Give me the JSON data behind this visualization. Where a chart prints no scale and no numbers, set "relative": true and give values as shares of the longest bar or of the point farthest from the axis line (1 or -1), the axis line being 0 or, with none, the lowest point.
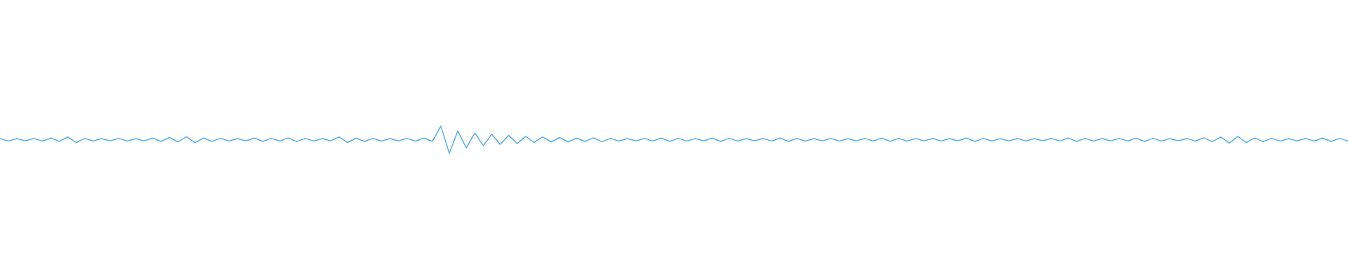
{
  "chart_data": {
    "type": "line",
    "relative": true,
    "marker": "none",
    "line_style": "solid",
    "grid": false,
    "legend": false,
    "categories": [
      null,
      null,
      null,
      null,
      null,
      null,
      null,
      null,
      null,
      null,
      null,
      null,
      null,
      null,
      null,
      null,
      null,
      null,
      null,
      null,
      null,
      null,
      null,
      null,
      null,
      null,
      null,
      null,
      null,
      null,
      null,
      null,
      null,
      null,
      null,
      null,
      null,
      null,
      null,
      null,
      null,
      null,
      null,
      null,
      null,
      null,
      null,
      null,
      null,
      null,
      null,
      null,
      null,
      null,
      null,
      null,
      null,
      null,
      null,
      null,
      null,
      null,
      null,
      null,
      null,
      null,
      null,
      null,
      null,
      null,
      null,
      null,
      null,
      null,
      null,
      null,
      null,
      null,
      null,
      null,
      null,
      null,
      null,
      null,
      null,
      null,
      null,
      null,
      null,
      null,
      null,
      null,
      null,
      null,
      null,
      null,
      null,
      null,
      null,
      null,
      null,
      null,
      null,
      null,
      null,
      null,
      null,
      null,
      null,
      null,
      null,
      null,
      null,
      null,
      null,
      null,
      null,
      null,
      null,
      null,
      null,
      null,
      null,
      null,
      null,
      null,
      null,
      null,
      null,
      null,
      null,
      null,
      null,
      null,
      null,
      null,
      null,
      null,
      null,
      null,
      null,
      null,
      null,
      null,
      null,
      null,
      null,
      null,
      null,
      null,
      null,
      null,
      null,
      null,
      null,
      null,
      null,
      null,
      null,
      null
    ],
    "series": [
      {
        "color": "#5aaee3",
        "values": [
          0.55,
          0.45,
          0.54,
          0.46,
          0.55,
          0.45,
          0.56,
          0.44,
          0.6,
          0.4,
          0.55,
          0.45,
          0.54,
          0.46,
          0.55,
          0.45,
          0.54,
          0.46,
          0.56,
          0.44,
          0.58,
          0.42,
          0.61,
          0.39,
          0.56,
          0.44,
          0.55,
          0.45,
          0.54,
          0.46,
          0.56,
          0.44,
          0.55,
          0.45,
          0.57,
          0.43,
          0.55,
          0.45,
          0.54,
          0.46,
          0.6,
          0.4,
          0.56,
          0.44,
          0.55,
          0.45,
          0.54,
          0.46,
          0.55,
          0.45,
          0.56,
          0.44,
          1.0,
          0.0,
          0.82,
          0.2,
          0.75,
          0.28,
          0.7,
          0.33,
          0.66,
          0.36,
          0.62,
          0.4,
          0.6,
          0.42,
          0.58,
          0.42,
          0.56,
          0.44,
          0.57,
          0.43,
          0.55,
          0.45,
          0.54,
          0.46,
          0.55,
          0.45,
          0.56,
          0.44,
          0.55,
          0.45,
          0.54,
          0.46,
          0.56,
          0.44,
          0.55,
          0.45,
          0.54,
          0.46,
          0.55,
          0.45,
          0.56,
          0.44,
          0.55,
          0.45,
          0.54,
          0.46,
          0.55,
          0.45,
          0.54,
          0.46,
          0.55,
          0.45,
          0.56,
          0.44,
          0.55,
          0.45,
          0.54,
          0.46,
          0.55,
          0.45,
          0.54,
          0.46,
          0.56,
          0.44,
          0.55,
          0.45,
          0.54,
          0.46,
          0.55,
          0.45,
          0.54,
          0.46,
          0.55,
          0.45,
          0.56,
          0.44,
          0.55,
          0.45,
          0.54,
          0.46,
          0.55,
          0.45,
          0.56,
          0.44,
          0.55,
          0.45,
          0.54,
          0.46,
          0.55,
          0.45,
          0.57,
          0.43,
          0.6,
          0.38,
          0.62,
          0.4,
          0.57,
          0.43,
          0.55,
          0.45,
          0.54,
          0.46,
          0.55,
          0.45,
          0.56,
          0.44,
          0.55,
          0.45
        ]
      }
    ]
  }
}
